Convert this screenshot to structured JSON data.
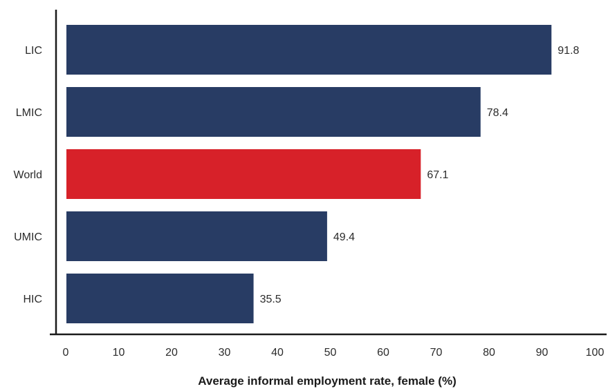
{
  "chart_data": {
    "type": "bar",
    "orientation": "horizontal",
    "categories": [
      "LIC",
      "LMIC",
      "World",
      "UMIC",
      "HIC"
    ],
    "values": [
      91.8,
      78.4,
      67.1,
      49.4,
      35.5
    ],
    "value_labels": [
      "91.8",
      "78.4",
      "67.1",
      "49.4",
      "35.5"
    ],
    "xlabel": "Average informal employment rate, female (%)",
    "ylabel": "",
    "xlim": [
      0,
      100
    ],
    "xticks": [
      0,
      10,
      20,
      30,
      40,
      50,
      60,
      70,
      80,
      90,
      100
    ],
    "xtick_labels": [
      "0",
      "10",
      "20",
      "30",
      "40",
      "50",
      "60",
      "70",
      "80",
      "90",
      "100"
    ],
    "grid": false,
    "colors": {
      "default": "#283c64",
      "highlight": "#d72129",
      "highlight_category": "World"
    }
  }
}
